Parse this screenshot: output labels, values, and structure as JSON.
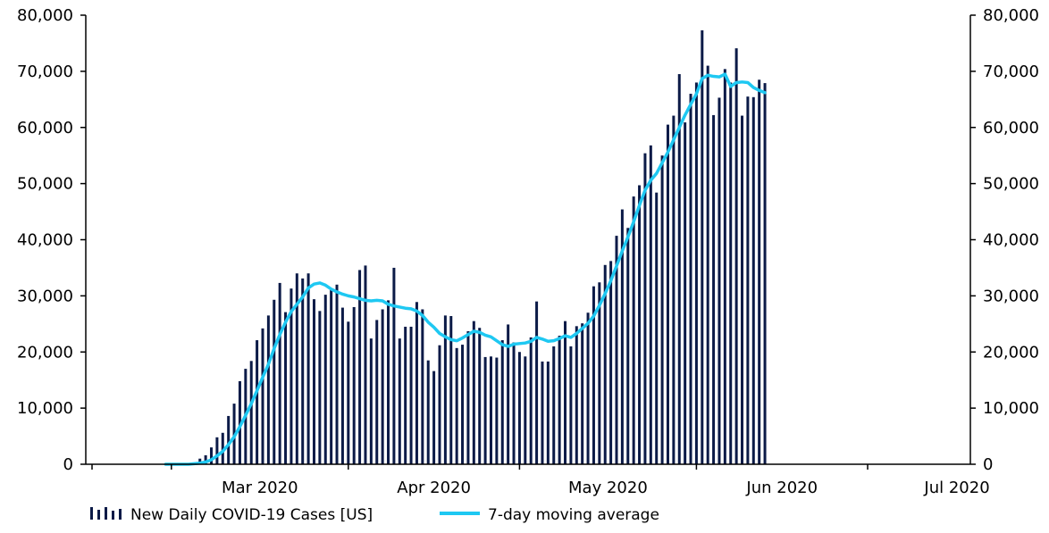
{
  "chart_data": {
    "type": "bar",
    "title": "",
    "xlabel": "",
    "ylabel": "",
    "ylim": [
      0,
      80000
    ],
    "y_ticks": [
      0,
      10000,
      20000,
      30000,
      40000,
      50000,
      60000,
      70000,
      80000
    ],
    "y_tick_labels": [
      "0",
      "10,000",
      "20,000",
      "30,000",
      "40,000",
      "50,000",
      "60,000",
      "70,000",
      "80,000"
    ],
    "secondary_axis": "right (same scale)",
    "x_start_date": "2020-02-15",
    "x_end_date": "2020-07-19",
    "x_ticks": [
      {
        "date": "2020-03-01",
        "label": "Mar 2020"
      },
      {
        "date": "2020-04-01",
        "label": "Apr 2020"
      },
      {
        "date": "2020-05-01",
        "label": "May 2020"
      },
      {
        "date": "2020-06-01",
        "label": "Jun 2020"
      },
      {
        "date": "2020-07-01",
        "label": "Jul 2020"
      }
    ],
    "grid": false,
    "legend_position": "bottom",
    "series": [
      {
        "name": "New Daily COVID-19 Cases [US]",
        "type": "bar",
        "color": "#0b1a47",
        "start_date": "2020-02-29",
        "values": [
          0,
          0,
          0,
          0,
          0,
          0,
          1000,
          1600,
          3000,
          4800,
          5600,
          8600,
          10800,
          14800,
          17000,
          18400,
          22100,
          24200,
          26500,
          29300,
          32300,
          27100,
          31300,
          34000,
          33100,
          34000,
          29400,
          27300,
          30200,
          31200,
          32000,
          27900,
          25400,
          28000,
          34600,
          35400,
          22400,
          25700,
          27600,
          29200,
          35000,
          22400,
          24500,
          24500,
          28900,
          27600,
          18500,
          16600,
          21200,
          26500,
          26400,
          20700,
          21300,
          23700,
          25500,
          24300,
          19100,
          19200,
          19000,
          22100,
          24900,
          21700,
          20000,
          19200,
          22600,
          29000,
          18300,
          18300,
          21000,
          22900,
          25500,
          21000,
          24600,
          25100,
          27000,
          31700,
          32400,
          35500,
          36200,
          40700,
          45400,
          42100,
          47700,
          49700,
          55400,
          56800,
          48400,
          55000,
          60500,
          62100,
          69500,
          60900,
          66000,
          68000,
          77300,
          71000,
          62200,
          65300,
          70400,
          68000,
          74100,
          62100,
          65500,
          65400,
          68500,
          67900
        ]
      },
      {
        "name": "7-day moving average",
        "type": "line",
        "color": "#1ec8f2",
        "start_date": "2020-02-29",
        "values": [
          0,
          0,
          0,
          0,
          0,
          100,
          200,
          400,
          800,
          1500,
          2300,
          3500,
          4900,
          6700,
          8700,
          10800,
          13100,
          15500,
          17800,
          20600,
          23100,
          25300,
          27200,
          28500,
          29800,
          31400,
          32100,
          32300,
          31900,
          31200,
          30700,
          30300,
          30000,
          29800,
          29500,
          29200,
          29100,
          29200,
          29100,
          28500,
          28200,
          28000,
          27800,
          27700,
          27300,
          26500,
          25300,
          24400,
          23300,
          22700,
          22200,
          22000,
          22500,
          23100,
          23700,
          23500,
          23000,
          22700,
          22000,
          21300,
          21000,
          21400,
          21500,
          21600,
          21900,
          22600,
          22300,
          21900,
          22000,
          22400,
          22900,
          22600,
          23300,
          24200,
          25100,
          26400,
          28300,
          30400,
          32700,
          35300,
          38000,
          40500,
          43200,
          46100,
          48800,
          50600,
          51800,
          53700,
          55600,
          57800,
          60000,
          62200,
          64100,
          66000,
          68700,
          69300,
          69100,
          69000,
          69500,
          67300,
          68000,
          68100,
          68000,
          67100,
          66600,
          66200
        ]
      }
    ]
  },
  "legend": {
    "bars_label": "New Daily COVID-19 Cases [US]",
    "line_label": "7-day moving average"
  }
}
